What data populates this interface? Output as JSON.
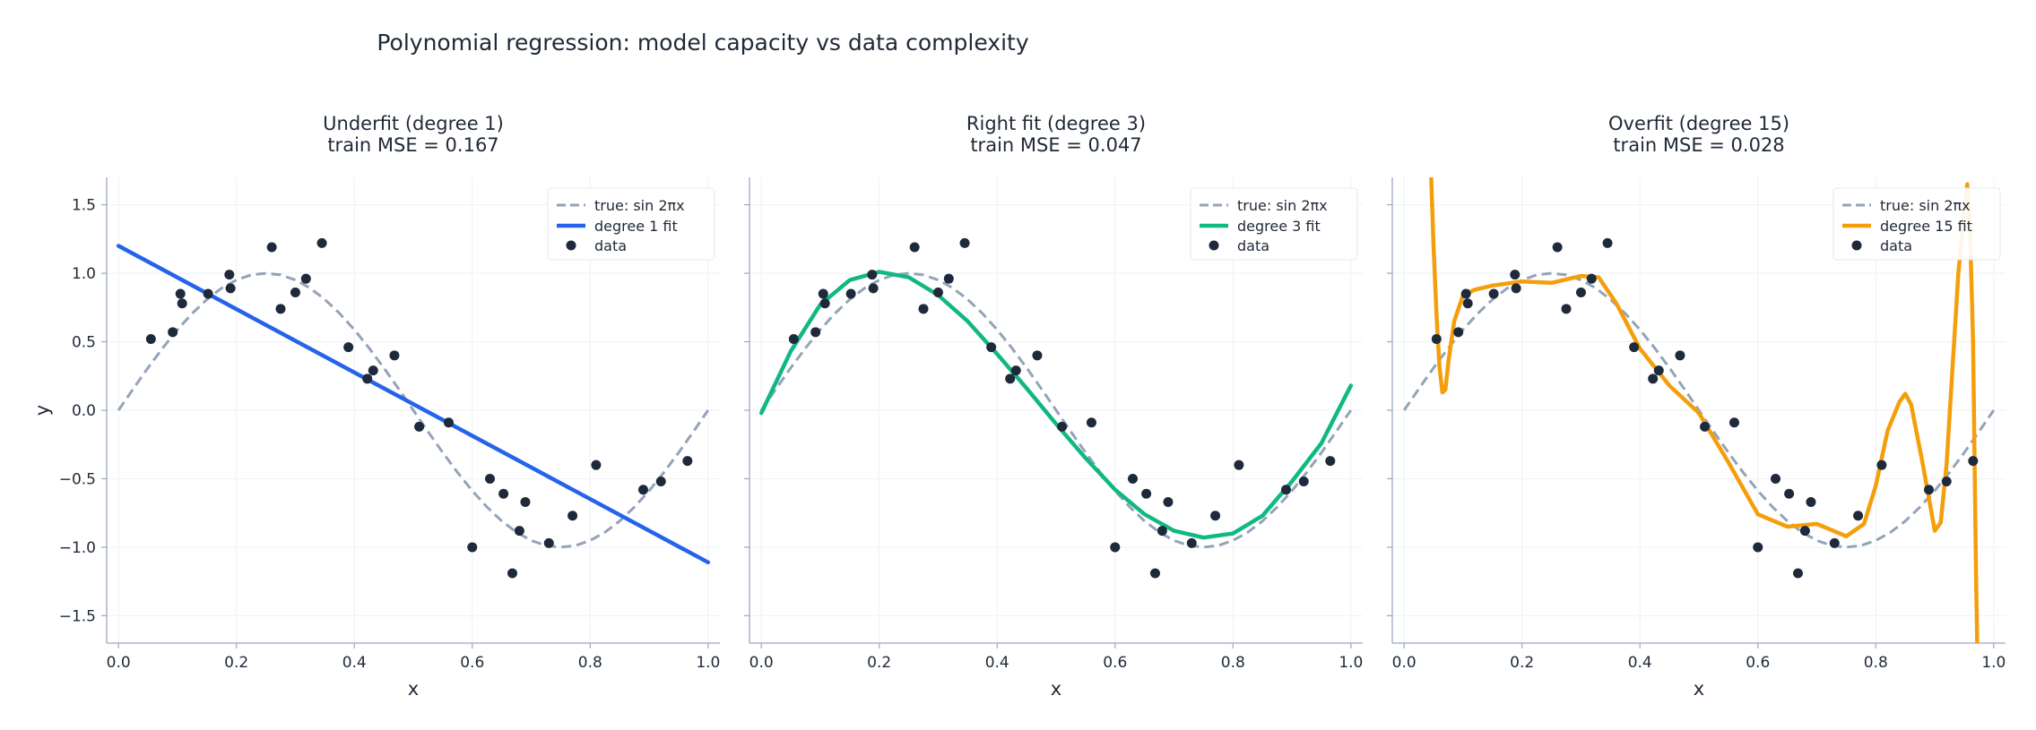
{
  "figure": {
    "title": "Polynomial regression: model capacity vs data complexity"
  },
  "colors": {
    "true_curve": "#94a3b8",
    "data_points": "#1e293b",
    "axis": "#9aa9bf",
    "grid": "#eef1f5",
    "text": "#1f2937"
  },
  "chart_data": [
    {
      "type": "line",
      "title": "Underfit  (degree 1)",
      "subtitle": "train MSE = 0.167",
      "xlabel": "x",
      "ylabel": "y",
      "xlim": [
        -0.02,
        1.02
      ],
      "ylim": [
        -1.7,
        1.7
      ],
      "xticks": [
        0.0,
        0.2,
        0.4,
        0.6,
        0.8,
        1.0
      ],
      "xticklabels": [
        "0.0",
        "0.2",
        "0.4",
        "0.6",
        "0.8",
        "1.0"
      ],
      "yticks": [
        1.5,
        1.0,
        0.5,
        0.0,
        -0.5,
        -1.0,
        -1.5
      ],
      "yticklabels": [
        "1.5",
        "1.0",
        "0.5",
        "0.0",
        "−0.5",
        "−1.0",
        "−1.5"
      ],
      "grid": true,
      "legend_position": "top-right",
      "legend": [
        "true: sin 2πx",
        "degree 1 fit",
        "data"
      ],
      "fit_color": "#2563eb",
      "series": [
        {
          "name": "degree 1 fit",
          "x": [
            0.0,
            1.0
          ],
          "y": [
            1.2,
            -1.11
          ]
        }
      ]
    },
    {
      "type": "line",
      "title": "Right fit  (degree 3)",
      "subtitle": "train MSE = 0.047",
      "xlabel": "x",
      "xlim": [
        -0.02,
        1.02
      ],
      "ylim": [
        -1.7,
        1.7
      ],
      "xticks": [
        0.0,
        0.2,
        0.4,
        0.6,
        0.8,
        1.0
      ],
      "xticklabels": [
        "0.0",
        "0.2",
        "0.4",
        "0.6",
        "0.8",
        "1.0"
      ],
      "yticks": [
        1.5,
        1.0,
        0.5,
        0.0,
        -0.5,
        -1.0,
        -1.5
      ],
      "grid": true,
      "legend_position": "top-right",
      "legend": [
        "true: sin 2πx",
        "degree 3 fit",
        "data"
      ],
      "fit_color": "#10b981",
      "series": [
        {
          "name": "degree 3 fit",
          "x": [
            0.0,
            0.05,
            0.1,
            0.15,
            0.2,
            0.25,
            0.3,
            0.35,
            0.4,
            0.45,
            0.5,
            0.55,
            0.6,
            0.65,
            0.7,
            0.75,
            0.8,
            0.85,
            0.9,
            0.95,
            1.0
          ],
          "y": [
            -0.02,
            0.43,
            0.77,
            0.95,
            1.01,
            0.97,
            0.84,
            0.65,
            0.41,
            0.16,
            -0.1,
            -0.35,
            -0.58,
            -0.76,
            -0.88,
            -0.93,
            -0.9,
            -0.77,
            -0.52,
            -0.24,
            0.18
          ]
        }
      ]
    },
    {
      "type": "line",
      "title": "Overfit  (degree 15)",
      "subtitle": "train MSE = 0.028",
      "xlabel": "x",
      "xlim": [
        -0.02,
        1.02
      ],
      "ylim": [
        -1.7,
        1.7
      ],
      "xticks": [
        0.0,
        0.2,
        0.4,
        0.6,
        0.8,
        1.0
      ],
      "xticklabels": [
        "0.0",
        "0.2",
        "0.4",
        "0.6",
        "0.8",
        "1.0"
      ],
      "yticks": [
        1.5,
        1.0,
        0.5,
        0.0,
        -0.5,
        -1.0,
        -1.5
      ],
      "grid": true,
      "legend_position": "top-right",
      "legend": [
        "true: sin 2πx",
        "degree 15 fit",
        "data"
      ],
      "fit_color": "#f59e0b",
      "series": [
        {
          "name": "degree 15 fit",
          "x": [
            0.046,
            0.05,
            0.055,
            0.06,
            0.065,
            0.07,
            0.075,
            0.085,
            0.1,
            0.12,
            0.15,
            0.2,
            0.25,
            0.3,
            0.33,
            0.36,
            0.4,
            0.45,
            0.5,
            0.55,
            0.6,
            0.65,
            0.7,
            0.75,
            0.78,
            0.8,
            0.82,
            0.84,
            0.85,
            0.86,
            0.88,
            0.9,
            0.91,
            0.92,
            0.93,
            0.94,
            0.95,
            0.955,
            0.96,
            0.965,
            0.97,
            0.972
          ],
          "y": [
            1.7,
            1.2,
            0.7,
            0.32,
            0.13,
            0.15,
            0.35,
            0.65,
            0.84,
            0.88,
            0.91,
            0.94,
            0.93,
            0.98,
            0.97,
            0.78,
            0.45,
            0.18,
            -0.02,
            -0.38,
            -0.76,
            -0.85,
            -0.83,
            -0.92,
            -0.83,
            -0.55,
            -0.15,
            0.06,
            0.12,
            0.04,
            -0.4,
            -0.88,
            -0.82,
            -0.4,
            0.3,
            1.0,
            1.45,
            1.65,
            1.3,
            0.5,
            -1.2,
            -1.7
          ]
        }
      ]
    }
  ],
  "true_function": {
    "name": "true: sin 2πx",
    "x": [
      0.0,
      0.025,
      0.05,
      0.075,
      0.1,
      0.125,
      0.15,
      0.175,
      0.2,
      0.225,
      0.25,
      0.275,
      0.3,
      0.325,
      0.35,
      0.375,
      0.4,
      0.425,
      0.45,
      0.475,
      0.5,
      0.525,
      0.55,
      0.575,
      0.6,
      0.625,
      0.65,
      0.675,
      0.7,
      0.725,
      0.75,
      0.775,
      0.8,
      0.825,
      0.85,
      0.875,
      0.9,
      0.925,
      0.95,
      0.975,
      1.0
    ],
    "y": [
      0.0,
      0.156,
      0.309,
      0.454,
      0.588,
      0.707,
      0.809,
      0.891,
      0.951,
      0.988,
      1.0,
      0.988,
      0.951,
      0.891,
      0.809,
      0.707,
      0.588,
      0.454,
      0.309,
      0.156,
      0.0,
      -0.156,
      -0.309,
      -0.454,
      -0.588,
      -0.707,
      -0.809,
      -0.891,
      -0.951,
      -0.988,
      -1.0,
      -0.988,
      -0.951,
      -0.891,
      -0.809,
      -0.707,
      -0.588,
      -0.454,
      -0.309,
      -0.156,
      0.0
    ]
  },
  "data_points": {
    "name": "data",
    "x": [
      0.055,
      0.092,
      0.105,
      0.108,
      0.152,
      0.188,
      0.19,
      0.26,
      0.275,
      0.3,
      0.318,
      0.345,
      0.39,
      0.422,
      0.432,
      0.468,
      0.51,
      0.56,
      0.6,
      0.63,
      0.653,
      0.668,
      0.68,
      0.69,
      0.73,
      0.77,
      0.81,
      0.89,
      0.92,
      0.965
    ],
    "y": [
      0.52,
      0.57,
      0.85,
      0.78,
      0.85,
      0.99,
      0.89,
      1.19,
      0.74,
      0.86,
      0.96,
      1.22,
      0.46,
      0.23,
      0.29,
      0.4,
      -0.12,
      -0.09,
      -1.0,
      -0.5,
      -0.61,
      -1.19,
      -0.88,
      -0.67,
      -0.97,
      -0.77,
      -0.4,
      -0.58,
      -0.52,
      -0.37
    ]
  }
}
